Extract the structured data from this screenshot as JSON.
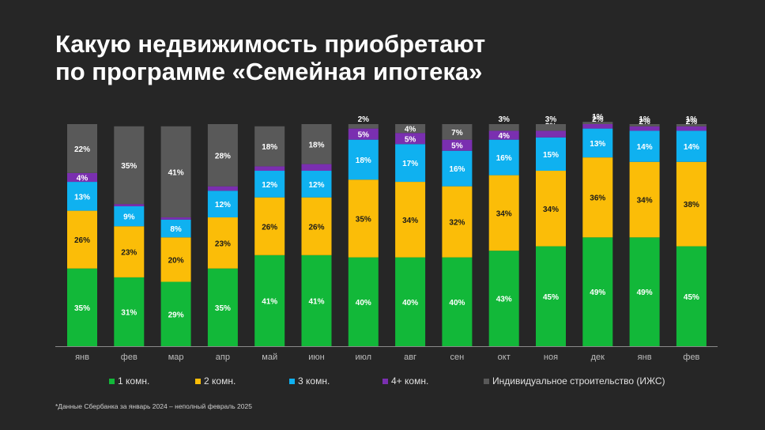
{
  "title": {
    "line1": "Какую недвижимость приобретают",
    "line2": "по программе «Семейная ипотека»"
  },
  "chart_data": {
    "type": "bar",
    "stacked": true,
    "percent_stacked": true,
    "categories": [
      "янв",
      "фев",
      "мар",
      "апр",
      "май",
      "июн",
      "июл",
      "авг",
      "сен",
      "окт",
      "ноя",
      "дек",
      "янв",
      "фев"
    ],
    "series": [
      {
        "name": "1 комн.",
        "color": "#12b839",
        "values": [
          35,
          31,
          29,
          35,
          41,
          41,
          40,
          40,
          40,
          43,
          45,
          49,
          49,
          45
        ]
      },
      {
        "name": "2 комн.",
        "color": "#fbbd08",
        "values": [
          26,
          23,
          20,
          23,
          26,
          26,
          35,
          34,
          32,
          34,
          34,
          36,
          34,
          38
        ]
      },
      {
        "name": "3 комн.",
        "color": "#0fb1f0",
        "values": [
          13,
          9,
          8,
          12,
          12,
          12,
          18,
          17,
          16,
          16,
          15,
          13,
          14,
          14
        ]
      },
      {
        "name": "4+ комн.",
        "color": "#7a2fb0",
        "values": [
          4,
          1,
          1,
          2,
          2,
          3,
          5,
          5,
          5,
          4,
          3,
          2,
          2,
          2
        ]
      },
      {
        "name": "Индивидуальное строительство (ИЖС)",
        "color": "#595959",
        "values": [
          22,
          35,
          41,
          28,
          18,
          18,
          2,
          4,
          7,
          3,
          3,
          1,
          1,
          1
        ]
      }
    ],
    "value_suffix": "%",
    "ylim": [
      0,
      100
    ],
    "grid": false,
    "legend_position": "bottom"
  },
  "footnote": "*Данные Сбербанка за январь 2024 – неполный февраль 2025"
}
